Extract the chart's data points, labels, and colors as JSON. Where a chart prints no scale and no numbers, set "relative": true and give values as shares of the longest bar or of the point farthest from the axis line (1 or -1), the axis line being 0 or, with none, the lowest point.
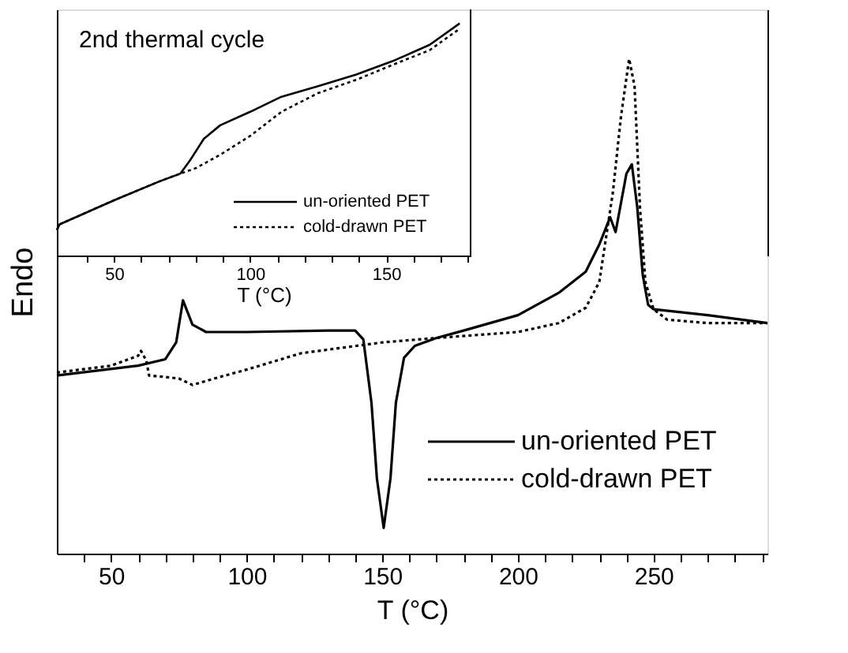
{
  "chart_data": [
    {
      "type": "line",
      "xlabel": "T (°C)",
      "ylabel": "Endo",
      "relative": true,
      "tick_labels": "x",
      "legend": "bottom right",
      "xlim": [
        30,
        292
      ],
      "xticks": [
        {
          "value": 40,
          "label": null
        },
        50,
        {
          "value": 60,
          "label": null
        },
        {
          "value": 70,
          "label": null
        },
        {
          "value": 80,
          "label": null
        },
        {
          "value": 90,
          "label": null
        },
        100,
        {
          "value": 110,
          "label": null
        },
        {
          "value": 120,
          "label": null
        },
        {
          "value": 130,
          "label": null
        },
        {
          "value": 140,
          "label": null
        },
        150,
        {
          "value": 160,
          "label": null
        },
        {
          "value": 170,
          "label": null
        },
        {
          "value": 180,
          "label": null
        },
        {
          "value": 190,
          "label": null
        },
        200,
        {
          "value": 210,
          "label": null
        },
        {
          "value": 220,
          "label": null
        },
        {
          "value": 230,
          "label": null
        },
        {
          "value": 240,
          "label": null
        },
        250,
        {
          "value": 260,
          "label": null
        },
        {
          "value": 270,
          "label": null
        },
        {
          "value": 280,
          "label": null
        },
        {
          "value": 290,
          "label": null
        }
      ],
      "series": [
        {
          "name": "un-oriented PET",
          "color": "#000000",
          "line_style": "solid",
          "x": [
            30,
            60,
            70,
            74,
            76.5,
            80,
            85,
            100,
            130,
            140,
            143,
            146,
            148,
            150.5,
            153,
            155,
            158,
            162,
            170,
            180,
            200,
            215,
            225,
            230,
            234,
            236,
            240,
            242,
            244,
            246,
            248,
            250,
            270,
            292
          ],
          "values": [
            0.36,
            0.38,
            0.393,
            0.427,
            0.512,
            0.463,
            0.448,
            0.448,
            0.451,
            0.451,
            0.433,
            0.305,
            0.152,
            0.052,
            0.152,
            0.305,
            0.396,
            0.42,
            0.436,
            0.451,
            0.482,
            0.527,
            0.57,
            0.625,
            0.68,
            0.65,
            0.768,
            0.787,
            0.7,
            0.564,
            0.503,
            0.494,
            0.482,
            0.466
          ]
        },
        {
          "name": "cold-drawn  PET",
          "color": "#000000",
          "line_style": "dotted",
          "x": [
            30,
            50,
            60,
            61,
            63,
            64,
            70,
            75,
            80,
            90,
            100,
            120,
            150,
            170,
            200,
            215,
            225,
            230,
            235,
            238,
            241,
            243,
            245,
            247,
            250,
            255,
            270,
            292
          ],
          "values": [
            0.366,
            0.38,
            0.4,
            0.41,
            0.39,
            0.36,
            0.357,
            0.354,
            0.341,
            0.357,
            0.372,
            0.405,
            0.427,
            0.436,
            0.448,
            0.466,
            0.497,
            0.549,
            0.73,
            0.884,
            1.0,
            0.945,
            0.7,
            0.549,
            0.494,
            0.473,
            0.466,
            0.466
          ]
        }
      ]
    },
    {
      "type": "line",
      "title": "2nd thermal cycle",
      "xlabel": "T (°C)",
      "relative": true,
      "tick_labels": "x",
      "legend": "bottom right",
      "xlim": [
        29,
        181
      ],
      "xticks": [
        {
          "value": 40,
          "label": null
        },
        50,
        {
          "value": 60,
          "label": null
        },
        {
          "value": 70,
          "label": null
        },
        {
          "value": 80,
          "label": null
        },
        {
          "value": 90,
          "label": null
        },
        100,
        {
          "value": 110,
          "label": null
        },
        {
          "value": 120,
          "label": null
        },
        {
          "value": 130,
          "label": null
        },
        {
          "value": 140,
          "label": null
        },
        150,
        {
          "value": 160,
          "label": null
        },
        {
          "value": 170,
          "label": null
        },
        {
          "value": 180,
          "label": null
        }
      ],
      "series": [
        {
          "name": "un-oriented PET",
          "color": "#000000",
          "line_style": "solid",
          "x": [
            29,
            30,
            50,
            66.6,
            74.4,
            78,
            83,
            89,
            100,
            111.5,
            125,
            139,
            152.5,
            166,
            177
          ],
          "values": [
            0.11,
            0.134,
            0.238,
            0.319,
            0.353,
            0.411,
            0.503,
            0.561,
            0.619,
            0.684,
            0.73,
            0.78,
            0.838,
            0.908,
            1.0
          ]
        },
        {
          "name": "cold-drawn  PET",
          "color": "#000000",
          "line_style": "dotted",
          "x": [
            29,
            30,
            50,
            66.6,
            74.4,
            80,
            89,
            100,
            111.5,
            125,
            139,
            152.5,
            166,
            177
          ],
          "values": [
            0.11,
            0.134,
            0.238,
            0.319,
            0.353,
            0.376,
            0.434,
            0.515,
            0.619,
            0.7,
            0.757,
            0.822,
            0.885,
            0.977
          ]
        }
      ]
    }
  ]
}
